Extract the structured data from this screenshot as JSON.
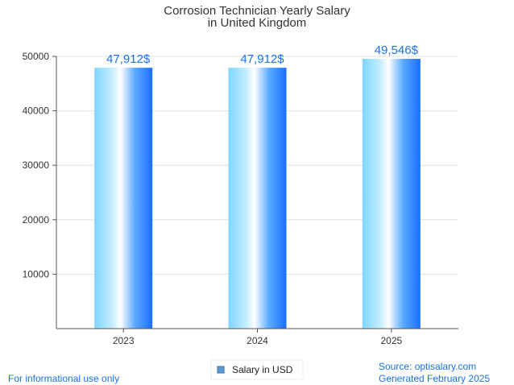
{
  "chart_data": {
    "type": "bar",
    "title": [
      "Corrosion Technician Yearly Salary",
      "in United Kingdom"
    ],
    "categories": [
      "2023",
      "2024",
      "2025"
    ],
    "series": [
      {
        "name": "Salary in USD",
        "values": [
          47912,
          47912,
          49546
        ],
        "value_labels": [
          "47,912$",
          "47,912$",
          "49,546$"
        ]
      }
    ],
    "y_ticks": [
      10000,
      20000,
      30000,
      40000,
      50000
    ],
    "ylim": [
      0,
      50000
    ],
    "grid": true,
    "legend_position": "bottom-center"
  },
  "footer": {
    "left_note": "For informational use only",
    "source": "Source: optisalary.com",
    "generated": "Generated February 2025"
  },
  "colors": {
    "bar_light": "#d8f3ff",
    "bar_mid": "#7fd6ff",
    "bar_dark": "#1a6fff",
    "label_blue": "#1a73e8",
    "grid": "#e0e0e0",
    "axis": "#555555"
  }
}
